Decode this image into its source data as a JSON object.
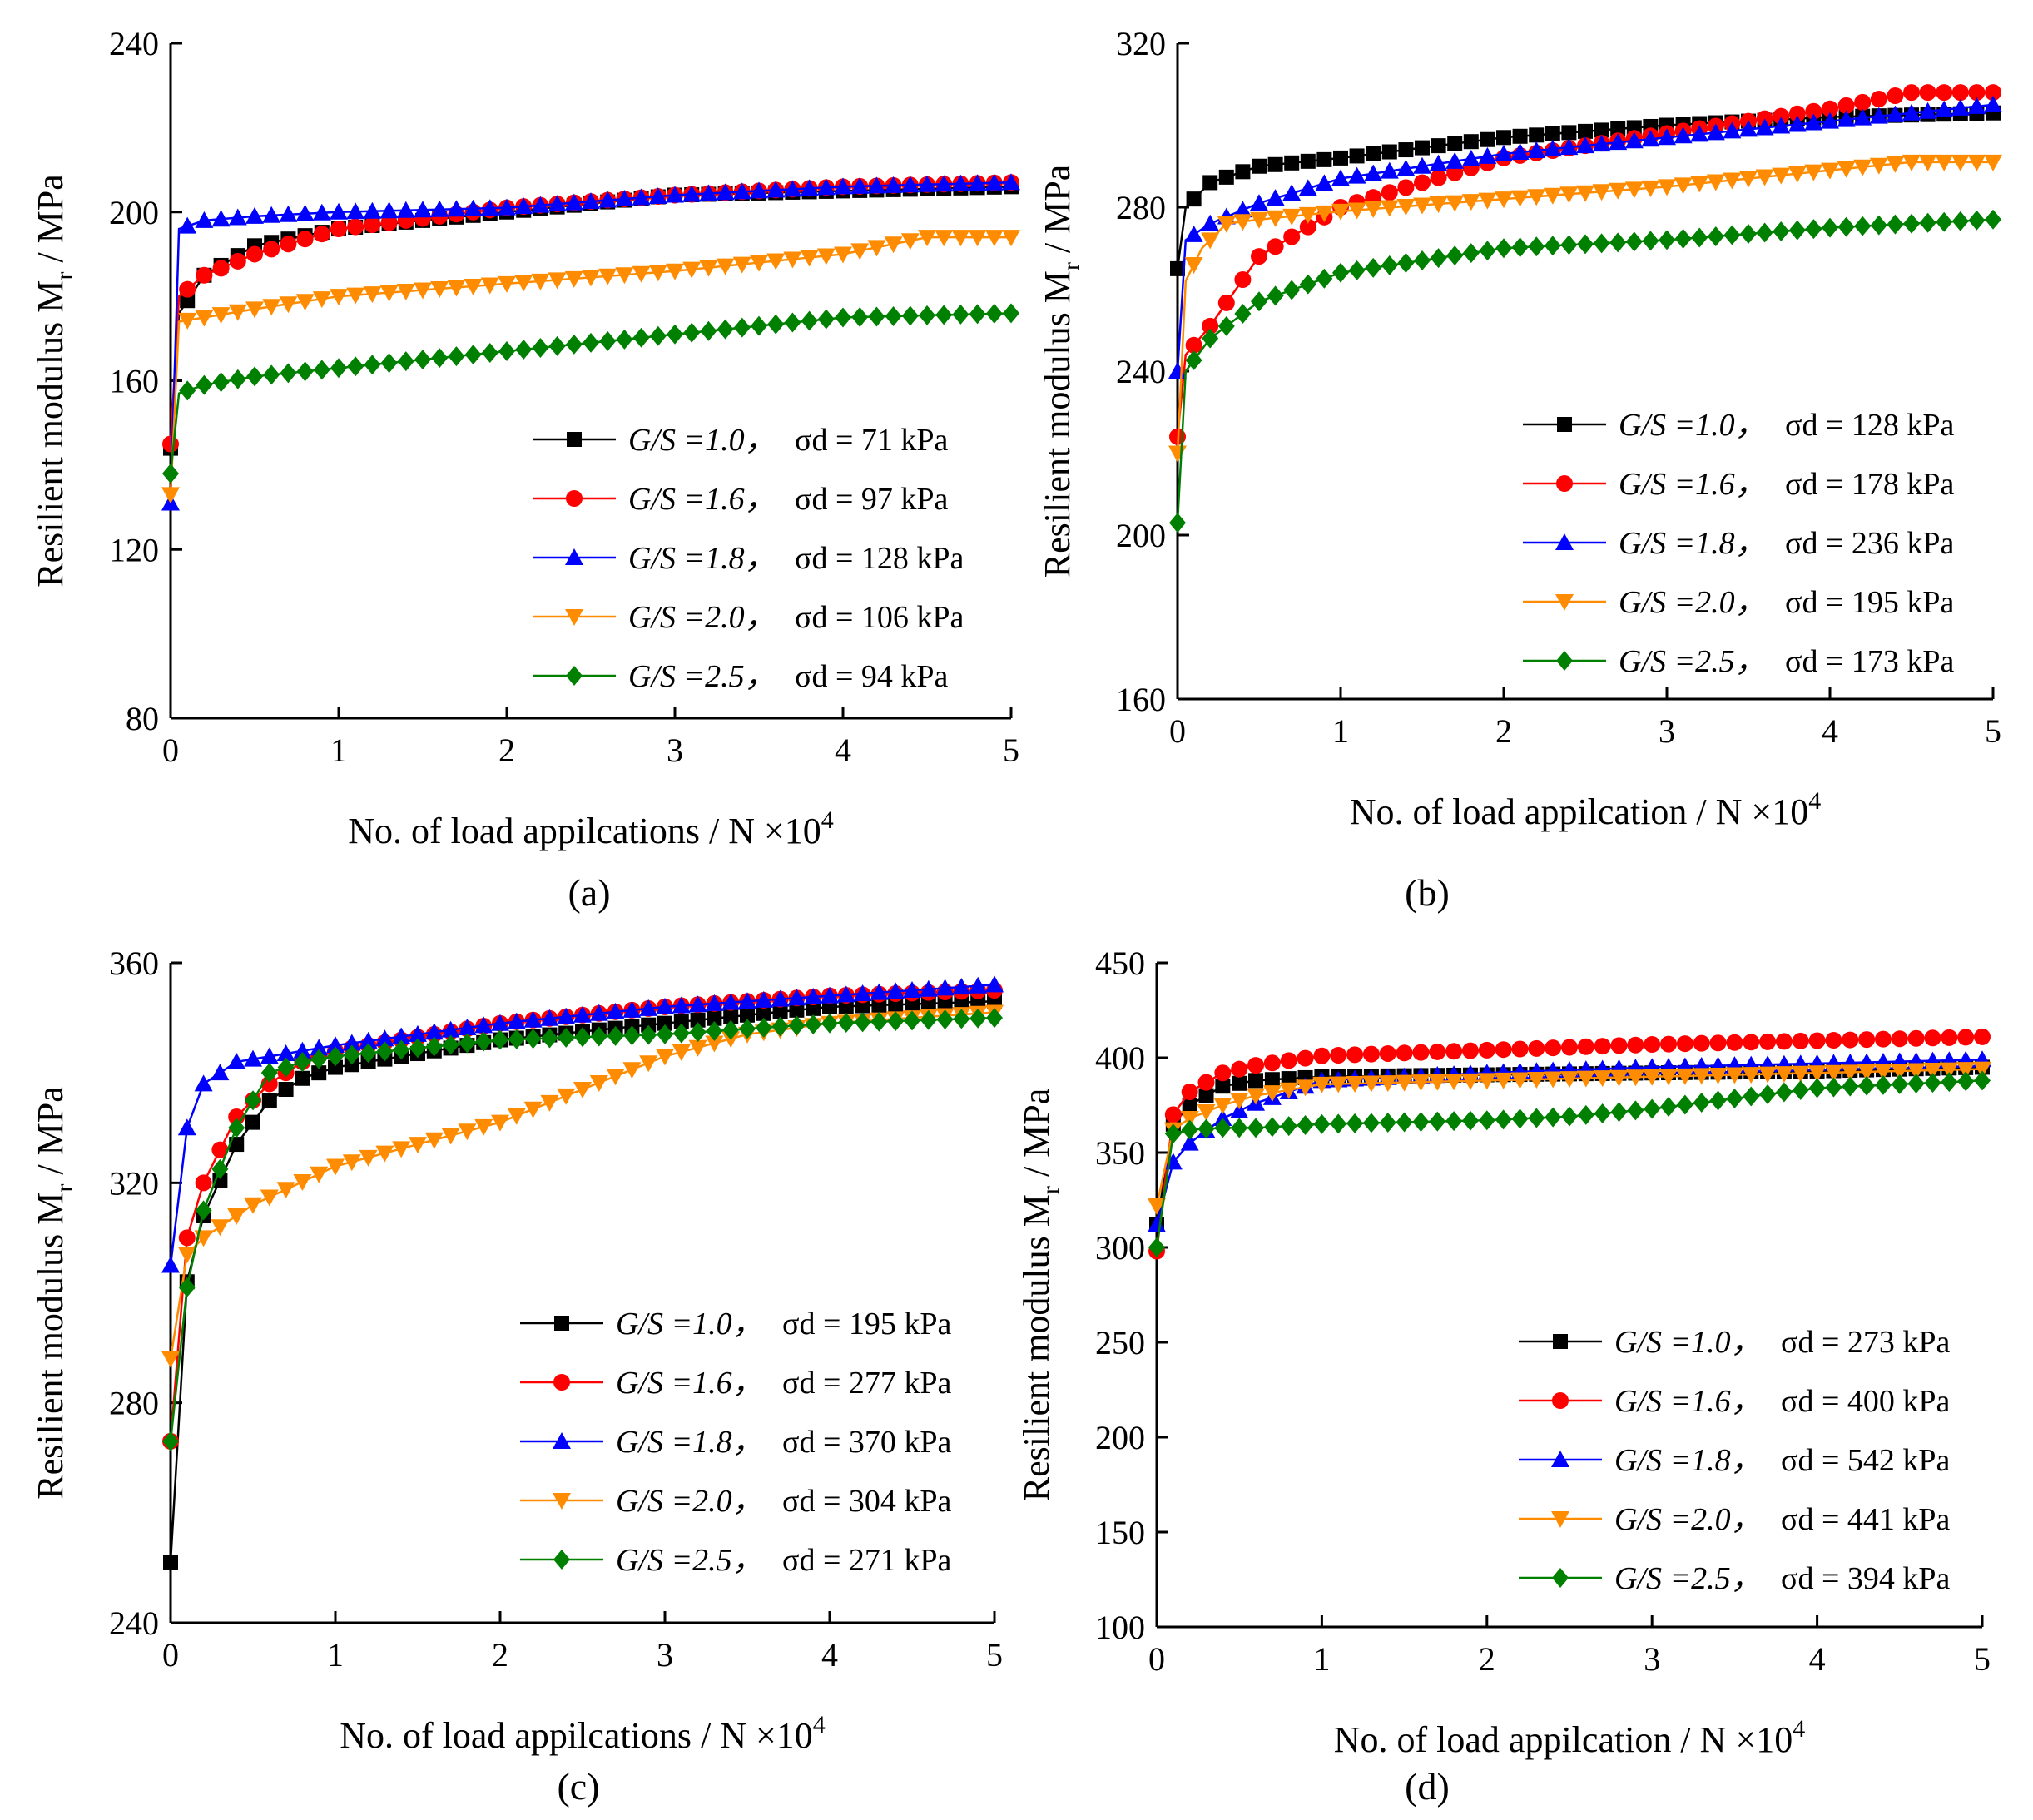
{
  "chart_data": [
    {
      "type": "line",
      "panel_label": "(a)",
      "xlabel": "No. of load appilcations / N ×10",
      "xlabel_sup": "4",
      "ylabel": "Resilient modulus M",
      "ylabel_sub": "r",
      "ylabel_unit": " / MPa",
      "xlim": [
        0,
        5
      ],
      "ylim": [
        80,
        240
      ],
      "xticks": [
        "0",
        "1",
        "2",
        "3",
        "4",
        "5"
      ],
      "yticks": [
        "80",
        "120",
        "160",
        "200",
        "240"
      ],
      "series": [
        {
          "name": "G/S =1.0，",
          "sigma": "σd =  71  kPa",
          "color": "#000000",
          "marker": "square",
          "x": [
            0,
            0.05,
            0.2,
            0.5,
            1,
            2,
            3,
            4,
            5
          ],
          "values": [
            144,
            176,
            185,
            192,
            196,
            200,
            204,
            205,
            206
          ]
        },
        {
          "name": "G/S =1.6，",
          "sigma": "σd =  97  kPa",
          "color": "#ff0000",
          "marker": "circle",
          "x": [
            0,
            0.05,
            0.2,
            0.5,
            1,
            2,
            3,
            4,
            5
          ],
          "values": [
            145,
            180,
            185,
            190,
            196,
            201,
            204,
            206,
            207
          ]
        },
        {
          "name": "G/S =1.8，",
          "sigma": "σd = 128 kPa",
          "color": "#0000ff",
          "marker": "triangle",
          "x": [
            0,
            0.05,
            0.2,
            0.5,
            1,
            2,
            3,
            4,
            5
          ],
          "values": [
            131,
            196,
            198,
            199,
            200,
            201,
            204,
            206,
            207
          ]
        },
        {
          "name": "G/S =2.0，",
          "sigma": "σd = 106 kPa",
          "color": "#ff8c00",
          "marker": "triangle-down",
          "x": [
            0,
            0.05,
            0.2,
            0.5,
            1,
            2,
            3,
            4,
            4.5,
            5
          ],
          "values": [
            133,
            174,
            175,
            177,
            180,
            183,
            186,
            190,
            194,
            194
          ]
        },
        {
          "name": "G/S =2.5，",
          "sigma": "σd =  94  kPa",
          "color": "#008000",
          "marker": "diamond",
          "x": [
            0,
            0.05,
            0.2,
            0.5,
            1,
            2,
            3,
            4,
            5
          ],
          "values": [
            138,
            157,
            159,
            161,
            163,
            167,
            171,
            175,
            176
          ]
        }
      ]
    },
    {
      "type": "line",
      "panel_label": "(b)",
      "xlabel": "No. of load appilcation / N ×10",
      "xlabel_sup": "4",
      "ylabel": "Resilient modulus M",
      "ylabel_sub": "r",
      "ylabel_unit": " / MPa",
      "xlim": [
        0,
        5
      ],
      "ylim": [
        160,
        320
      ],
      "xticks": [
        "0",
        "1",
        "2",
        "3",
        "4",
        "5"
      ],
      "yticks": [
        "160",
        "200",
        "240",
        "280",
        "320"
      ],
      "series": [
        {
          "name": "G/S =1.0，",
          "sigma": "σd = 128 kPa",
          "color": "#000000",
          "marker": "square",
          "x": [
            0,
            0.05,
            0.2,
            0.5,
            1,
            2,
            3,
            4,
            5
          ],
          "values": [
            265,
            280,
            286,
            290,
            292,
            297,
            300,
            302,
            303
          ]
        },
        {
          "name": "G/S =1.6，",
          "sigma": "σd = 178 kPa",
          "color": "#ff0000",
          "marker": "circle",
          "x": [
            0,
            0.05,
            0.2,
            0.5,
            1,
            2,
            3,
            4,
            4.5,
            5
          ],
          "values": [
            224,
            244,
            251,
            268,
            280,
            292,
            298,
            304,
            308,
            308
          ]
        },
        {
          "name": "G/S =1.8，",
          "sigma": "σd = 236 kPa",
          "color": "#0000ff",
          "marker": "triangle",
          "x": [
            0,
            0.05,
            0.2,
            0.5,
            1,
            2,
            3,
            4,
            5
          ],
          "values": [
            240,
            272,
            276,
            281,
            287,
            293,
            297,
            301,
            305
          ]
        },
        {
          "name": "G/S =2.0，",
          "sigma": "σd = 195 kPa",
          "color": "#ff8c00",
          "marker": "triangle-down",
          "x": [
            0,
            0.05,
            0.15,
            0.3,
            0.5,
            1,
            2,
            3,
            4,
            4.5,
            5
          ],
          "values": [
            220,
            262,
            270,
            276,
            277,
            279,
            282,
            285,
            289,
            291,
            291
          ]
        },
        {
          "name": "G/S =2.5，",
          "sigma": "σd = 173 kPa",
          "color": "#008000",
          "marker": "diamond",
          "x": [
            0,
            0.05,
            0.2,
            0.5,
            1,
            2,
            3,
            4,
            5
          ],
          "values": [
            203,
            240,
            248,
            257,
            264,
            270,
            272,
            275,
            277
          ]
        }
      ]
    },
    {
      "type": "line",
      "panel_label": "(c)",
      "xlabel": "No. of load appilcations / N ×10",
      "xlabel_sup": "4",
      "ylabel": "Resilient modulus M",
      "ylabel_sub": "r",
      "ylabel_unit": " / MPa",
      "xlim": [
        0,
        5
      ],
      "ylim": [
        240,
        360
      ],
      "xticks": [
        "0",
        "1",
        "2",
        "3",
        "4",
        "5"
      ],
      "yticks": [
        "240",
        "280",
        "320",
        "360"
      ],
      "series": [
        {
          "name": "G/S =1.0，",
          "sigma": "σd = 195 kPa",
          "color": "#000000",
          "marker": "square",
          "x": [
            0,
            0.1,
            0.2,
            0.4,
            0.6,
            0.8,
            1,
            2,
            3,
            4,
            5
          ],
          "values": [
            251,
            302,
            314,
            327,
            335,
            339,
            341,
            346,
            349,
            352,
            353
          ]
        },
        {
          "name": "G/S =1.6，",
          "sigma": "σd = 277 kPa",
          "color": "#ff0000",
          "marker": "circle",
          "x": [
            0,
            0.1,
            0.2,
            0.4,
            0.6,
            0.8,
            1,
            2,
            3,
            4,
            5
          ],
          "values": [
            273,
            310,
            320,
            332,
            338,
            342,
            344,
            349,
            352,
            354,
            355
          ]
        },
        {
          "name": "G/S =1.8，",
          "sigma": "σd = 370 kPa",
          "color": "#0000ff",
          "marker": "triangle",
          "x": [
            0,
            0.1,
            0.2,
            0.4,
            0.6,
            0.8,
            1,
            2,
            3,
            4,
            5
          ],
          "values": [
            305,
            330,
            338,
            342,
            343,
            344,
            345,
            349,
            352,
            354,
            356
          ]
        },
        {
          "name": "G/S =2.0，",
          "sigma": "σd = 304 kPa",
          "color": "#ff8c00",
          "marker": "triangle-down",
          "x": [
            0,
            0.1,
            0.2,
            0.5,
            1,
            1.5,
            2,
            2.5,
            3,
            3.5,
            4,
            5
          ],
          "values": [
            288,
            307,
            310,
            316,
            323,
            327,
            331,
            337,
            343,
            347,
            349,
            351
          ]
        },
        {
          "name": "G/S =2.5，",
          "sigma": "σd = 271 kPa",
          "color": "#008000",
          "marker": "diamond",
          "x": [
            0,
            0.1,
            0.2,
            0.4,
            0.6,
            0.8,
            1,
            2,
            3,
            4,
            5
          ],
          "values": [
            273,
            301,
            315,
            330,
            340,
            342,
            343,
            346,
            347,
            349,
            350
          ]
        }
      ]
    },
    {
      "type": "line",
      "panel_label": "(d)",
      "xlabel": "No. of load appilcation / N ×10",
      "xlabel_sup": "4",
      "ylabel": "Resilient modulus M",
      "ylabel_sub": "r",
      "ylabel_unit": " / MPa",
      "xlim": [
        0,
        5
      ],
      "ylim": [
        100,
        450
      ],
      "xticks": [
        "0",
        "1",
        "2",
        "3",
        "4",
        "5"
      ],
      "yticks": [
        "100",
        "150",
        "200",
        "250",
        "300",
        "350",
        "400",
        "450"
      ],
      "series": [
        {
          "name": "G/S =1.0，",
          "sigma": "σd = 273 kPa",
          "color": "#000000",
          "marker": "square",
          "x": [
            0,
            0.1,
            0.2,
            0.4,
            0.6,
            1,
            2,
            3,
            4,
            5
          ],
          "values": [
            312,
            365,
            375,
            385,
            388,
            390,
            391,
            392,
            393,
            395
          ]
        },
        {
          "name": "G/S =1.6，",
          "sigma": "σd = 400 kPa",
          "color": "#ff0000",
          "marker": "circle",
          "x": [
            0,
            0.1,
            0.2,
            0.4,
            0.6,
            1,
            2,
            3,
            4,
            5
          ],
          "values": [
            298,
            370,
            382,
            392,
            396,
            401,
            404,
            407,
            409,
            411
          ]
        },
        {
          "name": "G/S =1.8，",
          "sigma": "σd = 542 kPa",
          "color": "#0000ff",
          "marker": "triangle",
          "x": [
            0,
            0.1,
            0.2,
            0.4,
            0.6,
            1,
            2,
            3,
            4,
            5
          ],
          "values": [
            312,
            345,
            355,
            368,
            376,
            388,
            392,
            395,
            397,
            399
          ]
        },
        {
          "name": "G/S =2.0，",
          "sigma": "σd = 441 kPa",
          "color": "#ff8c00",
          "marker": "triangle-down",
          "x": [
            0,
            0.1,
            0.2,
            0.4,
            0.6,
            1,
            2,
            3,
            4,
            5
          ],
          "values": [
            322,
            362,
            368,
            375,
            380,
            386,
            388,
            390,
            392,
            394
          ]
        },
        {
          "name": "G/S =2.5，",
          "sigma": "σd = 394 kPa",
          "color": "#008000",
          "marker": "diamond",
          "x": [
            0,
            0.1,
            0.2,
            0.4,
            0.6,
            1,
            2,
            2.5,
            3,
            4,
            5
          ],
          "values": [
            300,
            360,
            362,
            363,
            363,
            365,
            367,
            369,
            373,
            384,
            388
          ]
        }
      ]
    }
  ]
}
